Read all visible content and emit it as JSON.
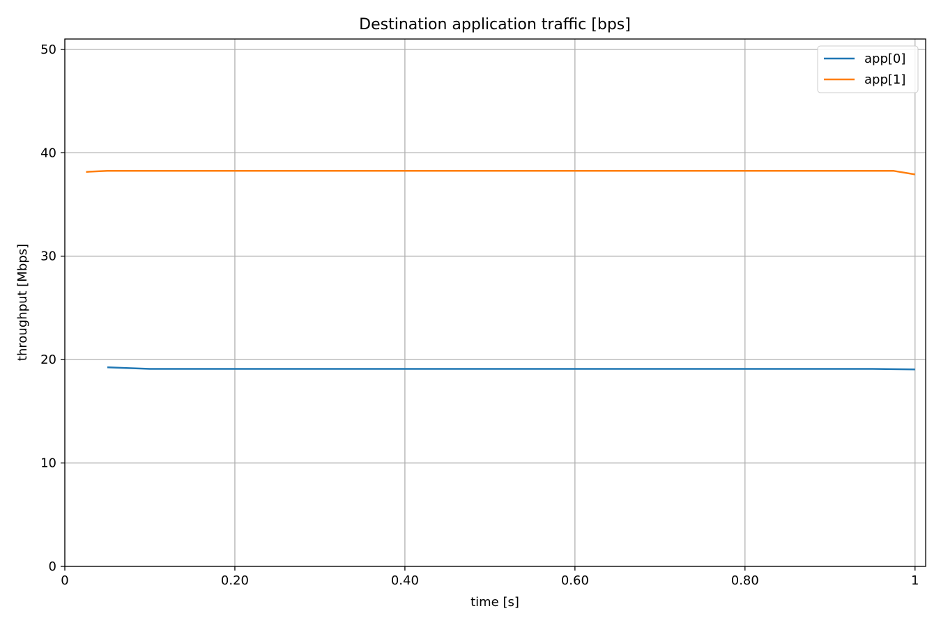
{
  "chart_data": {
    "type": "line",
    "title": "Destination application traffic [bps]",
    "xlabel": "time [s]",
    "ylabel": "throughput [Mbps]",
    "xlim": [
      0,
      1.0125
    ],
    "ylim": [
      0,
      51
    ],
    "x_ticks": [
      {
        "value": 0,
        "label": "0"
      },
      {
        "value": 0.2,
        "label": "0.20"
      },
      {
        "value": 0.4,
        "label": "0.40"
      },
      {
        "value": 0.6,
        "label": "0.60"
      },
      {
        "value": 0.8,
        "label": "0.80"
      },
      {
        "value": 1.0,
        "label": "1"
      }
    ],
    "y_ticks": [
      {
        "value": 0,
        "label": "0"
      },
      {
        "value": 10,
        "label": "10"
      },
      {
        "value": 20,
        "label": "20"
      },
      {
        "value": 30,
        "label": "30"
      },
      {
        "value": 40,
        "label": "40"
      },
      {
        "value": 50,
        "label": "50"
      }
    ],
    "grid": true,
    "legend_position": "top-right",
    "series": [
      {
        "name": "app[0]",
        "color": "#1f77b4",
        "x": [
          0.05,
          0.1,
          0.15,
          0.2,
          0.3,
          0.4,
          0.5,
          0.6,
          0.7,
          0.8,
          0.9,
          0.95,
          1.0
        ],
        "y": [
          19.25,
          19.1,
          19.1,
          19.1,
          19.1,
          19.1,
          19.1,
          19.1,
          19.1,
          19.1,
          19.1,
          19.1,
          19.05
        ]
      },
      {
        "name": "app[1]",
        "color": "#ff7f0e",
        "x": [
          0.025,
          0.05,
          0.1,
          0.2,
          0.3,
          0.4,
          0.5,
          0.6,
          0.7,
          0.8,
          0.9,
          0.975,
          1.0
        ],
        "y": [
          38.15,
          38.25,
          38.25,
          38.25,
          38.25,
          38.25,
          38.25,
          38.25,
          38.25,
          38.25,
          38.25,
          38.25,
          37.9
        ]
      }
    ]
  }
}
